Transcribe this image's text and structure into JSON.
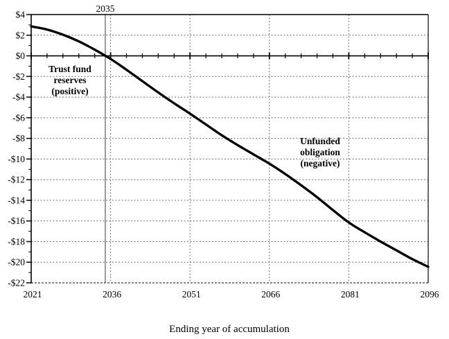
{
  "chart_data": {
    "type": "line",
    "title": "",
    "xlabel": "Ending year of accumulation",
    "ylabel": "",
    "xlim": [
      2021,
      2096
    ],
    "ylim": [
      -22,
      4
    ],
    "x_major_ticks": [
      2021,
      2036,
      2051,
      2066,
      2081,
      2096
    ],
    "x_minor_tick_step": 3,
    "y_tick_values": [
      4,
      2,
      0,
      -2,
      -4,
      -6,
      -8,
      -10,
      -12,
      -14,
      -16,
      -18,
      -20,
      -22
    ],
    "y_tick_labels": [
      "$4",
      "$2",
      "$0",
      "-$2",
      "-$4",
      "-$6",
      "-$8",
      "-$10",
      "-$12",
      "-$14",
      "-$16",
      "-$18",
      "-$20",
      "-$22"
    ],
    "y_minor_tick_step": 1,
    "grid": true,
    "legend": "none",
    "zero_axis": true,
    "reference_line": {
      "x": 2035,
      "label": "2035"
    },
    "annotations": [
      {
        "lines": [
          "Trust fund",
          "reserves",
          "(positive)"
        ],
        "x": 2028.4,
        "y": -2.4
      },
      {
        "lines": [
          "Unfunded",
          "obligation",
          "(negative)"
        ],
        "x": 2075.6,
        "y": -9.4
      }
    ],
    "series": [
      {
        "label": "",
        "x": [
          2021,
          2024,
          2027,
          2030,
          2033,
          2036,
          2039,
          2042,
          2045,
          2048,
          2051,
          2054,
          2057,
          2060,
          2063,
          2066,
          2069,
          2072,
          2075,
          2078,
          2081,
          2084,
          2087,
          2090,
          2093,
          2096
        ],
        "values": [
          2.85,
          2.55,
          2.05,
          1.4,
          0.6,
          -0.3,
          -1.35,
          -2.45,
          -3.55,
          -4.6,
          -5.6,
          -6.65,
          -7.7,
          -8.65,
          -9.55,
          -10.45,
          -11.45,
          -12.55,
          -13.7,
          -14.95,
          -16.15,
          -17.1,
          -18.0,
          -18.85,
          -19.7,
          -20.45
        ]
      }
    ],
    "colors": {
      "line": "#000000",
      "grid": "#6e6e6e",
      "grid_bottom": "#3a3a3a",
      "axis": "#000000",
      "reference_line": "#3a3a3a",
      "text": "#000000",
      "background": "#ffffff"
    }
  }
}
